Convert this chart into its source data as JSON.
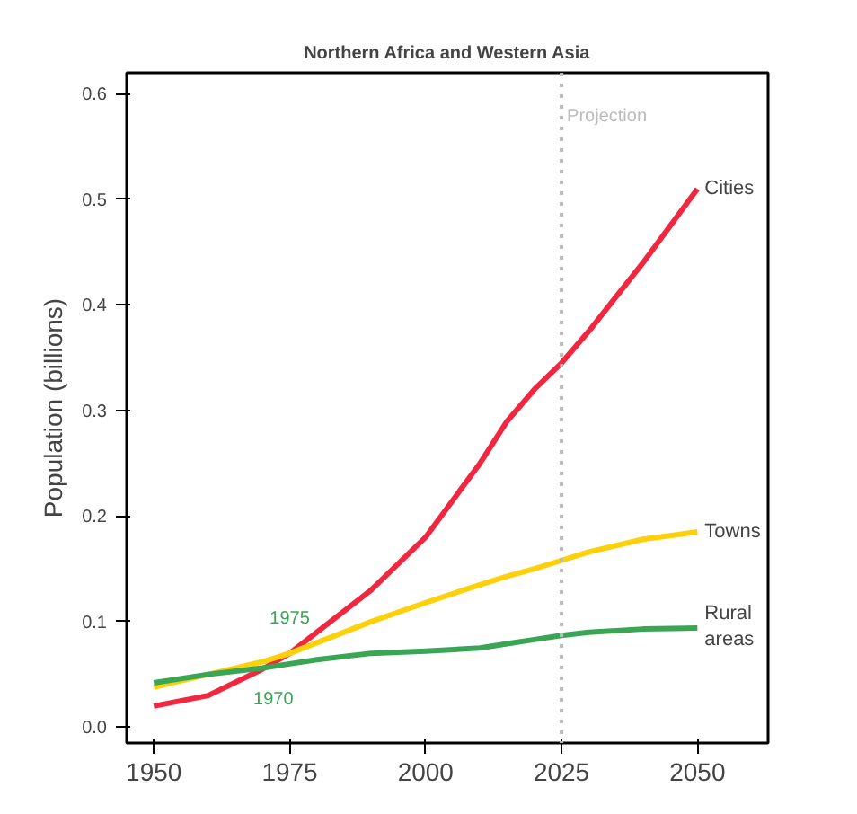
{
  "chart_data": {
    "type": "line",
    "title": "Northern Africa and Western Asia",
    "ylabel": "Population (billions)",
    "x": [
      1950,
      1960,
      1970,
      1975,
      1980,
      1990,
      2000,
      2010,
      2015,
      2020,
      2025,
      2030,
      2040,
      2050
    ],
    "series": [
      {
        "name": "Cities",
        "color": "#f0273f",
        "values": [
          0.02,
          0.03,
          0.055,
          0.07,
          0.09,
          0.13,
          0.18,
          0.25,
          0.29,
          0.32,
          0.345,
          0.375,
          0.44,
          0.51
        ]
      },
      {
        "name": "Towns",
        "color": "#fdd10a",
        "values": [
          0.038,
          0.05,
          0.062,
          0.07,
          0.08,
          0.1,
          0.118,
          0.135,
          0.143,
          0.15,
          0.158,
          0.166,
          0.178,
          0.185
        ]
      },
      {
        "name": "Rural areas",
        "color": "#3aa655",
        "values": [
          0.042,
          0.05,
          0.056,
          0.06,
          0.064,
          0.07,
          0.072,
          0.075,
          0.079,
          0.083,
          0.087,
          0.09,
          0.093,
          0.094
        ]
      }
    ],
    "xlim": [
      1945,
      2063
    ],
    "ylim": [
      -0.015,
      0.62
    ],
    "xticks": [
      1950,
      1975,
      2000,
      2025,
      2050
    ],
    "yticks": [
      {
        "value": 0,
        "label": "0.0"
      },
      0.1,
      0.2,
      0.3,
      0.4,
      0.5,
      0.6
    ],
    "ref_lines": [
      {
        "axis": "x",
        "value": 2025,
        "label": "Projection",
        "color": "#bbbbbb",
        "line_style": "dotted"
      }
    ],
    "annotations": [
      {
        "text": "1975",
        "x": 1975,
        "y": 0.07
      },
      {
        "text": "1970",
        "x": 1970,
        "y": 0.055
      }
    ],
    "grid": false,
    "line_style": "solid",
    "marker": "none"
  }
}
